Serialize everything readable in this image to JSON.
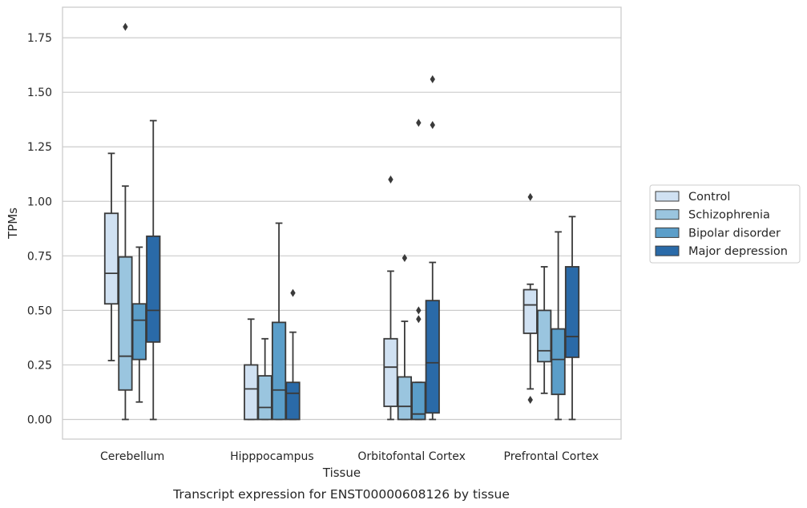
{
  "caption": "Transcript expression for ENST00000608126 by tissue",
  "chart_data": {
    "type": "box",
    "xlabel": "Tissue",
    "ylabel": "TPMs",
    "categories": [
      "Cerebellum",
      "Hipppocampus",
      "Orbitofontal Cortex",
      "Prefrontal Cortex"
    ],
    "ylim": [
      -0.09,
      1.89
    ],
    "yticks": [
      0.0,
      0.25,
      0.5,
      0.75,
      1.0,
      1.25,
      1.5,
      1.75
    ],
    "ytick_labels": [
      "0.00",
      "0.25",
      "0.50",
      "0.75",
      "1.00",
      "1.25",
      "1.50",
      "1.75"
    ],
    "grid": "horizontal",
    "legend_position": "right",
    "series": [
      {
        "name": "Control",
        "color": "#d0e1f2",
        "boxes": [
          {
            "whislo": 0.27,
            "q1": 0.53,
            "med": 0.67,
            "q3": 0.945,
            "whishi": 1.22,
            "fliers": []
          },
          {
            "whislo": 0.0,
            "q1": 0.0,
            "med": 0.14,
            "q3": 0.25,
            "whishi": 0.46,
            "fliers": []
          },
          {
            "whislo": 0.0,
            "q1": 0.06,
            "med": 0.24,
            "q3": 0.37,
            "whishi": 0.68,
            "fliers": [
              1.1
            ]
          },
          {
            "whislo": 0.14,
            "q1": 0.395,
            "med": 0.525,
            "q3": 0.595,
            "whishi": 0.62,
            "fliers": [
              1.02,
              0.09
            ]
          }
        ]
      },
      {
        "name": "Schizophrenia",
        "color": "#9ac5df",
        "boxes": [
          {
            "whislo": 0.0,
            "q1": 0.135,
            "med": 0.29,
            "q3": 0.745,
            "whishi": 1.07,
            "fliers": [
              1.8
            ]
          },
          {
            "whislo": 0.0,
            "q1": 0.0,
            "med": 0.055,
            "q3": 0.2,
            "whishi": 0.37,
            "fliers": []
          },
          {
            "whislo": 0.0,
            "q1": 0.0,
            "med": 0.06,
            "q3": 0.195,
            "whishi": 0.45,
            "fliers": [
              0.74
            ]
          },
          {
            "whislo": 0.12,
            "q1": 0.265,
            "med": 0.315,
            "q3": 0.5,
            "whishi": 0.7,
            "fliers": []
          }
        ]
      },
      {
        "name": "Bipolar disorder",
        "color": "#5b9ec9",
        "boxes": [
          {
            "whislo": 0.08,
            "q1": 0.275,
            "med": 0.455,
            "q3": 0.53,
            "whishi": 0.79,
            "fliers": []
          },
          {
            "whislo": 0.0,
            "q1": 0.0,
            "med": 0.135,
            "q3": 0.445,
            "whishi": 0.9,
            "fliers": []
          },
          {
            "whislo": 0.0,
            "q1": 0.0,
            "med": 0.025,
            "q3": 0.17,
            "whishi": 0.17,
            "fliers": [
              1.36,
              0.5,
              0.46
            ]
          },
          {
            "whislo": 0.0,
            "q1": 0.115,
            "med": 0.275,
            "q3": 0.415,
            "whishi": 0.86,
            "fliers": []
          }
        ]
      },
      {
        "name": "Major depression",
        "color": "#2a6aa8",
        "boxes": [
          {
            "whislo": 0.0,
            "q1": 0.355,
            "med": 0.5,
            "q3": 0.84,
            "whishi": 1.37,
            "fliers": []
          },
          {
            "whislo": 0.0,
            "q1": 0.0,
            "med": 0.12,
            "q3": 0.17,
            "whishi": 0.4,
            "fliers": [
              0.58
            ]
          },
          {
            "whislo": 0.0,
            "q1": 0.03,
            "med": 0.26,
            "q3": 0.545,
            "whishi": 0.72,
            "fliers": [
              1.56,
              1.35
            ]
          },
          {
            "whislo": 0.0,
            "q1": 0.285,
            "med": 0.38,
            "q3": 0.7,
            "whishi": 0.93,
            "fliers": []
          }
        ]
      }
    ]
  }
}
